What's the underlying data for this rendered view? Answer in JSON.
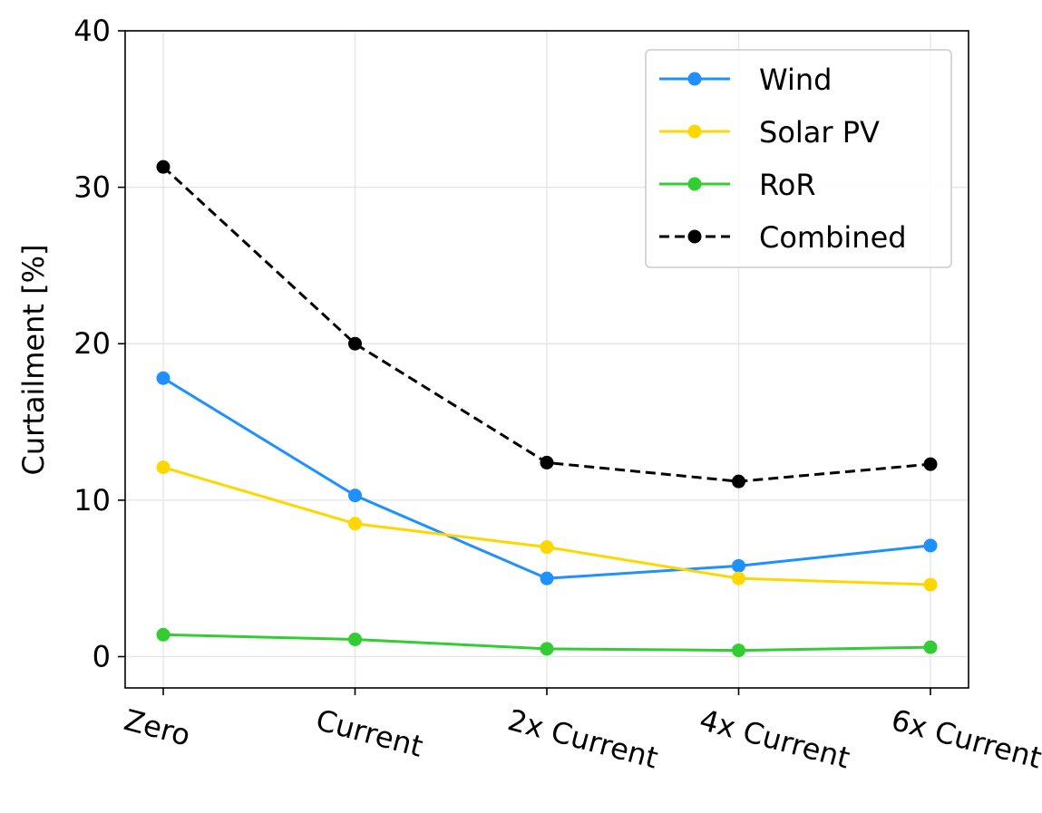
{
  "chart_data": {
    "type": "line",
    "title": "",
    "xlabel": "",
    "ylabel": "Curtailment [%]",
    "categories": [
      "Zero",
      "Current",
      "2x Current",
      "4x Current",
      "6x Current"
    ],
    "ylim": [
      -2,
      40
    ],
    "yticks": [
      0,
      10,
      20,
      30,
      40
    ],
    "grid": true,
    "legend_position": "upper right",
    "series": [
      {
        "name": "Wind",
        "color": "#1E90FF",
        "style": "solid",
        "values": [
          17.8,
          10.3,
          5.0,
          5.8,
          7.1
        ]
      },
      {
        "name": "Solar PV",
        "color": "#FFD700",
        "style": "solid",
        "values": [
          12.1,
          8.5,
          7.0,
          5.0,
          4.6
        ]
      },
      {
        "name": "RoR",
        "color": "#32CD32",
        "style": "solid",
        "values": [
          1.4,
          1.1,
          0.5,
          0.4,
          0.6
        ]
      },
      {
        "name": "Combined",
        "color": "#000000",
        "style": "dashed",
        "values": [
          31.3,
          20.0,
          12.4,
          11.2,
          12.3
        ]
      }
    ]
  }
}
